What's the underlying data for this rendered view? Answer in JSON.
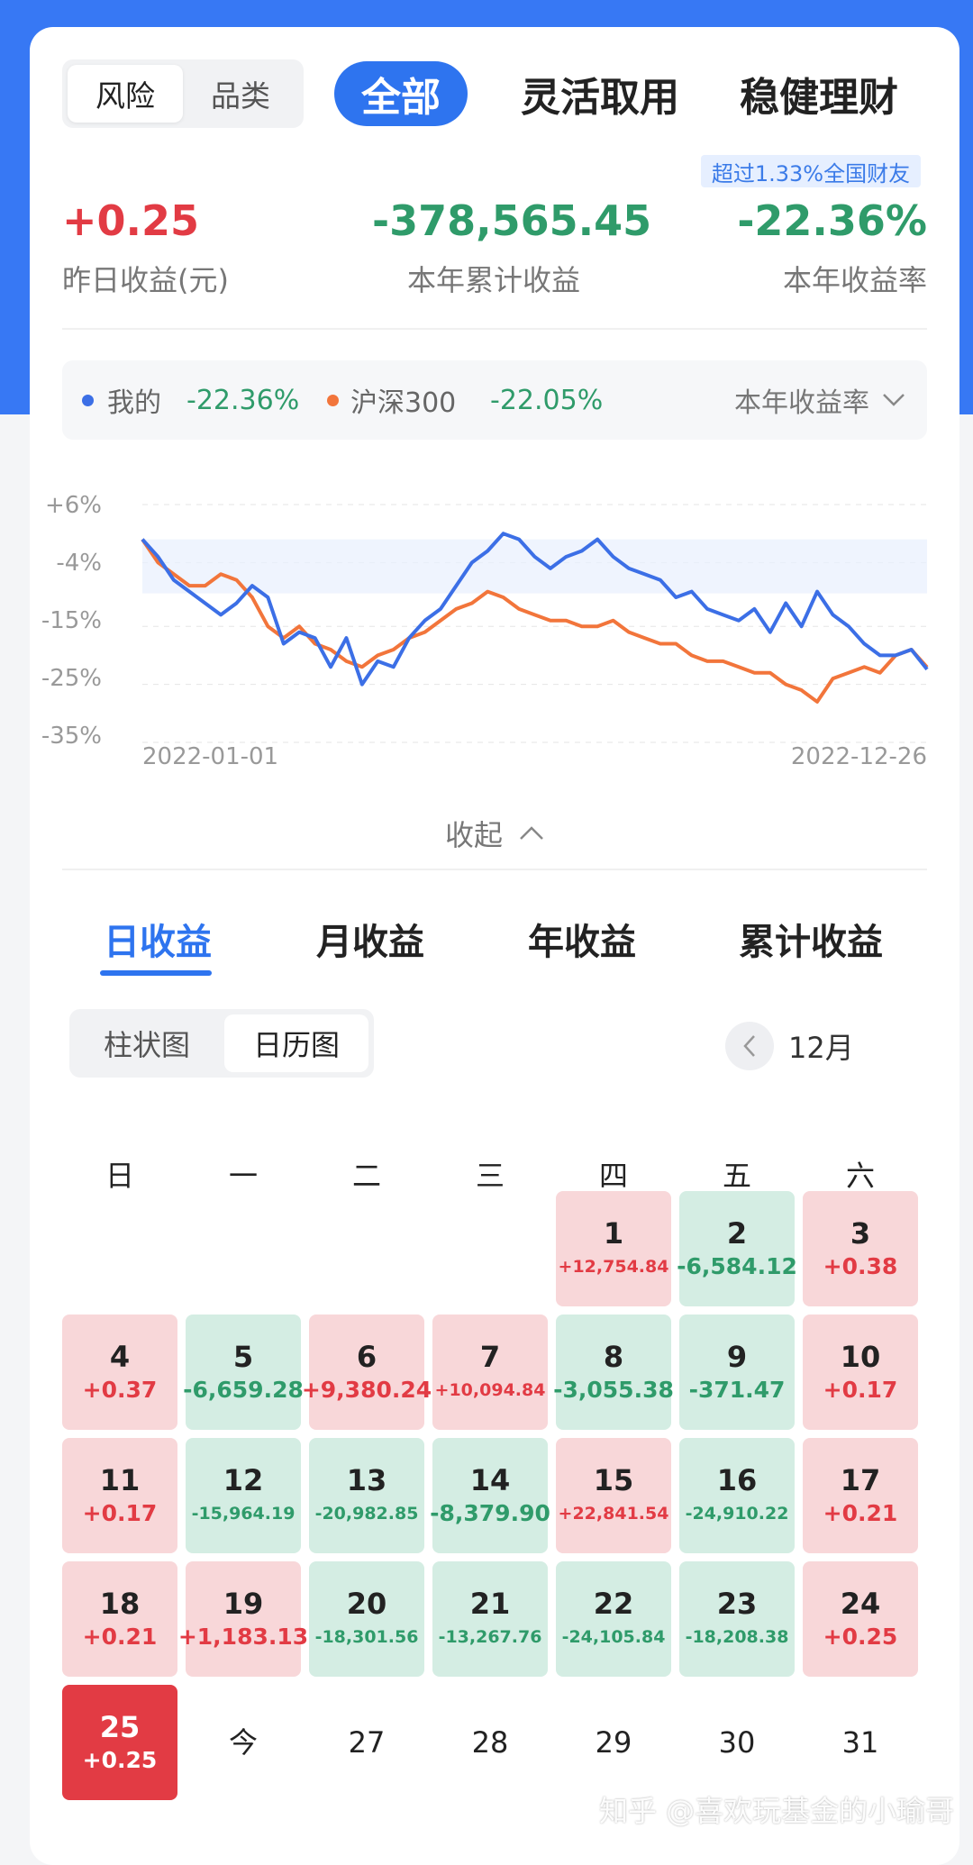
{
  "header": {
    "segment": [
      "风险",
      "品类"
    ],
    "tabs": [
      "全部",
      "灵活取用",
      "稳健理财"
    ],
    "badge": "超过1.33%全国财友"
  },
  "summary": {
    "yesterday_value": "+0.25",
    "yesterday_label": "昨日收益(元)",
    "ytd_value": "-378,565.45",
    "ytd_label": "本年累计收益",
    "rate_value": "-22.36%",
    "rate_label": "本年收益率"
  },
  "legend": {
    "mine_label": "我的",
    "mine_value": "-22.36%",
    "index_label": "沪深300",
    "index_value": "-22.05%",
    "selector": "本年收益率"
  },
  "colors": {
    "mine": "#3c6fe6",
    "index": "#f2753b",
    "accent": "#2e74ef",
    "up": "#e23b44",
    "down": "#2f9b6a"
  },
  "chart_data": {
    "type": "line",
    "y_ticks": [
      "+6%",
      "-4%",
      "-15%",
      "-25%",
      "-35%"
    ],
    "ylim": [
      -35,
      6
    ],
    "x_tick_labels": [
      "2022-01-01",
      "2022-12-26"
    ],
    "x_range": [
      0,
      100
    ],
    "series": [
      {
        "name": "我的",
        "color": "#3c6fe6",
        "x": [
          0,
          2,
          4,
          6,
          8,
          10,
          12,
          14,
          16,
          18,
          20,
          22,
          24,
          26,
          28,
          30,
          32,
          34,
          36,
          38,
          40,
          42,
          44,
          46,
          48,
          50,
          52,
          54,
          56,
          58,
          60,
          62,
          64,
          66,
          68,
          70,
          72,
          74,
          76,
          78,
          80,
          82,
          84,
          86,
          88,
          90,
          92,
          94,
          96,
          98,
          100
        ],
        "y": [
          0,
          -3,
          -7,
          -9,
          -11,
          -13,
          -11,
          -8,
          -10,
          -18,
          -16,
          -17,
          -22,
          -17,
          -25,
          -21,
          -22,
          -17,
          -14,
          -12,
          -8,
          -4,
          -2,
          1,
          0,
          -3,
          -5,
          -3,
          -2,
          0,
          -3,
          -5,
          -6,
          -7,
          -10,
          -9,
          -12,
          -13,
          -14,
          -12,
          -16,
          -11,
          -15,
          -9,
          -13,
          -15,
          -18,
          -20,
          -20,
          -19,
          -22.4
        ]
      },
      {
        "name": "沪深300",
        "color": "#f2753b",
        "x": [
          0,
          2,
          4,
          6,
          8,
          10,
          12,
          14,
          16,
          18,
          20,
          22,
          24,
          26,
          28,
          30,
          32,
          34,
          36,
          38,
          40,
          42,
          44,
          46,
          48,
          50,
          52,
          54,
          56,
          58,
          60,
          62,
          64,
          66,
          68,
          70,
          72,
          74,
          76,
          78,
          80,
          82,
          84,
          86,
          88,
          90,
          92,
          94,
          96,
          98,
          100
        ],
        "y": [
          0,
          -4,
          -6,
          -8,
          -8,
          -6,
          -7,
          -10,
          -15,
          -17,
          -15,
          -18,
          -19,
          -21,
          -22,
          -20,
          -19,
          -17,
          -16,
          -14,
          -12,
          -11,
          -9,
          -10,
          -12,
          -13,
          -14,
          -14,
          -15,
          -15,
          -14,
          -16,
          -17,
          -18,
          -18,
          -20,
          -21,
          -21,
          -22,
          -23,
          -23,
          -25,
          -26,
          -28,
          -24,
          -23,
          -22,
          -23,
          -20,
          -19,
          -22.05
        ]
      }
    ]
  },
  "collapse_label": "收起",
  "returns_tabs": [
    "日收益",
    "月收益",
    "年收益",
    "累计收益"
  ],
  "view_toggle": [
    "柱状图",
    "日历图"
  ],
  "month": "12月",
  "weekdays": [
    "日",
    "一",
    "二",
    "三",
    "四",
    "五",
    "六"
  ],
  "calendar": [
    {
      "day": "1",
      "value": "+12,754.84"
    },
    {
      "day": "2",
      "value": "-6,584.12"
    },
    {
      "day": "3",
      "value": "+0.38"
    },
    {
      "day": "4",
      "value": "+0.37"
    },
    {
      "day": "5",
      "value": "-6,659.28"
    },
    {
      "day": "6",
      "value": "+9,380.24"
    },
    {
      "day": "7",
      "value": "+10,094.84"
    },
    {
      "day": "8",
      "value": "-3,055.38"
    },
    {
      "day": "9",
      "value": "-371.47"
    },
    {
      "day": "10",
      "value": "+0.17"
    },
    {
      "day": "11",
      "value": "+0.17"
    },
    {
      "day": "12",
      "value": "-15,964.19"
    },
    {
      "day": "13",
      "value": "-20,982.85"
    },
    {
      "day": "14",
      "value": "-8,379.90"
    },
    {
      "day": "15",
      "value": "+22,841.54"
    },
    {
      "day": "16",
      "value": "-24,910.22"
    },
    {
      "day": "17",
      "value": "+0.21"
    },
    {
      "day": "18",
      "value": "+0.21"
    },
    {
      "day": "19",
      "value": "+1,183.13"
    },
    {
      "day": "20",
      "value": "-18,301.56"
    },
    {
      "day": "21",
      "value": "-13,267.76"
    },
    {
      "day": "22",
      "value": "-24,105.84"
    },
    {
      "day": "23",
      "value": "-18,208.38"
    },
    {
      "day": "24",
      "value": "+0.25"
    },
    {
      "day": "25",
      "value": "+0.25"
    },
    {
      "day": "今",
      "value": ""
    },
    {
      "day": "27",
      "value": ""
    },
    {
      "day": "28",
      "value": ""
    },
    {
      "day": "29",
      "value": ""
    },
    {
      "day": "30",
      "value": ""
    },
    {
      "day": "31",
      "value": ""
    }
  ],
  "watermark": "知乎 @喜欢玩基金的小瑜哥"
}
